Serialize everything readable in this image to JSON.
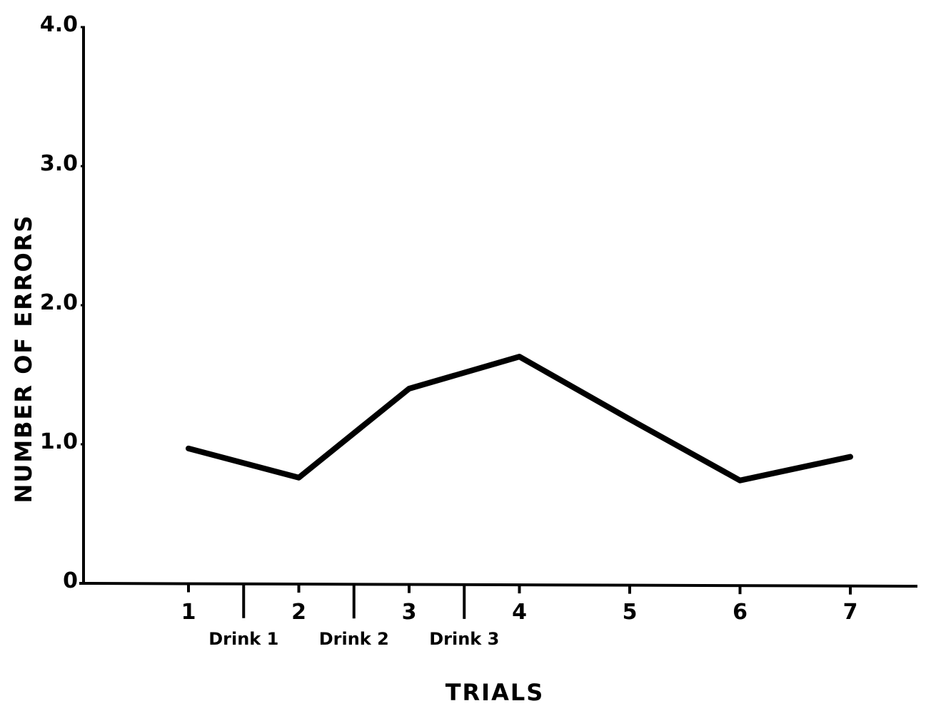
{
  "chart_data": {
    "type": "line",
    "title": "",
    "xlabel": "TRIALS",
    "ylabel": "NUMBER OF ERRORS",
    "x": [
      1,
      2,
      3,
      4,
      5,
      6,
      7
    ],
    "x_tick_labels": [
      "1",
      "2",
      "3",
      "4",
      "5",
      "6",
      "7"
    ],
    "y_tick_labels": [
      "0",
      "1.0",
      "2.0",
      "3.0",
      "4.0"
    ],
    "y_ticks": [
      0,
      1,
      2,
      3,
      4
    ],
    "ylim": [
      0,
      4
    ],
    "series": [
      {
        "values": [
          0.97,
          0.76,
          1.4,
          1.63,
          1.18,
          0.74,
          0.91
        ]
      }
    ],
    "separators": [
      {
        "label": "Drink 1",
        "after_trial": 1
      },
      {
        "label": "Drink 2",
        "after_trial": 2
      },
      {
        "label": "Drink 3",
        "after_trial": 3
      }
    ],
    "grid": false,
    "line_color": "#000000"
  }
}
